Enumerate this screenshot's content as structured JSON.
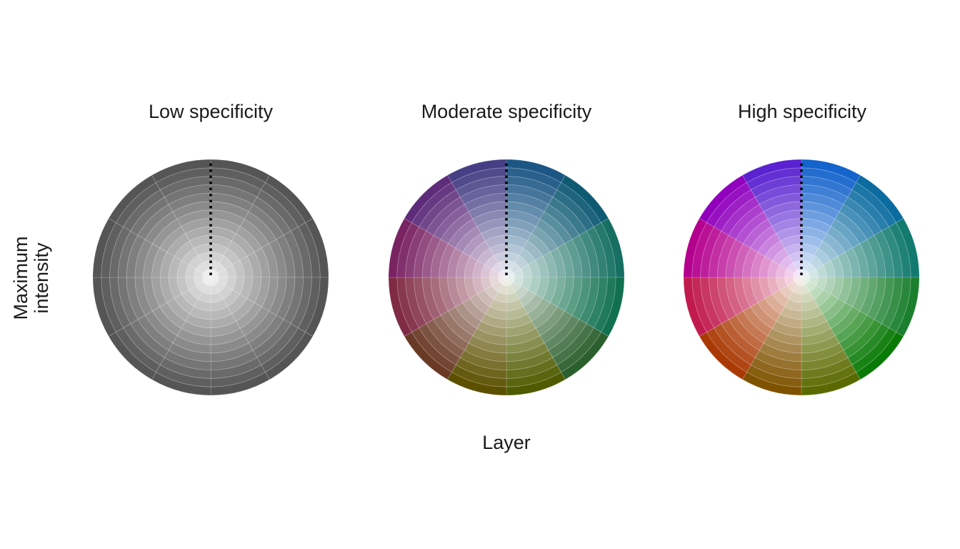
{
  "chart_data": {
    "type": "polar-area",
    "ylabel": "Maximum\nintensity",
    "xlabel": "Layer",
    "rings_per_wedge": 14,
    "wedges_per_panel": 12,
    "reference_line": "dotted",
    "panels": [
      {
        "title": "Low specificity",
        "max_radius": 1.0,
        "wedge_colors": [
          "#555555",
          "#555555",
          "#555555",
          "#555555",
          "#555555",
          "#555555",
          "#555555",
          "#555555",
          "#555555",
          "#555555",
          "#555555",
          "#555555"
        ]
      },
      {
        "title": "Moderate specificity",
        "max_radius": 1.0,
        "wedge_colors": [
          "#1c5684",
          "#0e5a73",
          "#166f62",
          "#11704f",
          "#2c5f2e",
          "#4f5b00",
          "#5c4f00",
          "#6a3a26",
          "#7f2b45",
          "#7a2363",
          "#5e2c7b",
          "#463f85"
        ]
      },
      {
        "title": "High specificity",
        "max_radius": 1.0,
        "wedge_colors": [
          "#1563cc",
          "#0c6ca0",
          "#127a6e",
          "#1b7f2e",
          "#0a7a06",
          "#5a6a00",
          "#7f5200",
          "#aa3a05",
          "#c01a4e",
          "#b4008e",
          "#9000bd",
          "#5a22d0"
        ]
      }
    ]
  }
}
